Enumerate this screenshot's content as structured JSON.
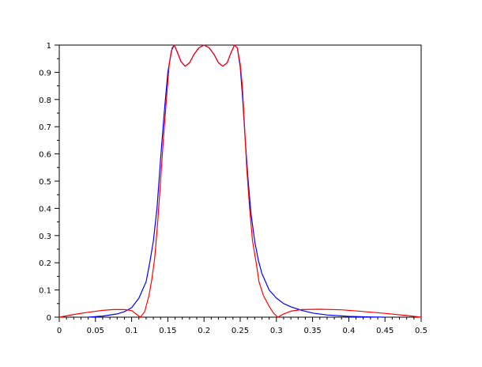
{
  "chart_data": {
    "type": "line",
    "title": "",
    "xlabel": "",
    "ylabel": "",
    "xlim": [
      0,
      0.5
    ],
    "ylim": [
      0,
      1
    ],
    "grid": false,
    "x_ticks": [
      "0",
      "0.05",
      "0.1",
      "0.15",
      "0.2",
      "0.25",
      "0.3",
      "0.35",
      "0.4",
      "0.45",
      "0.5"
    ],
    "y_ticks": [
      "0",
      "0.1",
      "0.2",
      "0.3",
      "0.4",
      "0.5",
      "0.6",
      "0.7",
      "0.8",
      "0.9",
      "1"
    ],
    "series": [
      {
        "color": "#0000ff",
        "x": [
          0.04,
          0.06,
          0.08,
          0.09,
          0.1,
          0.11,
          0.115,
          0.12,
          0.125,
          0.13,
          0.135,
          0.14,
          0.145,
          0.15,
          0.155,
          0.159,
          0.163,
          0.168,
          0.174,
          0.18,
          0.186,
          0.193,
          0.2,
          0.207,
          0.214,
          0.22,
          0.226,
          0.232,
          0.237,
          0.242,
          0.246,
          0.25,
          0.253,
          0.257,
          0.261,
          0.265,
          0.27,
          0.275,
          0.28,
          0.285,
          0.29,
          0.3,
          0.31,
          0.32,
          0.335,
          0.35,
          0.37,
          0.4,
          0.43,
          0.45
        ],
        "y": [
          0,
          0.004,
          0.012,
          0.02,
          0.035,
          0.07,
          0.1,
          0.13,
          0.2,
          0.28,
          0.4,
          0.58,
          0.75,
          0.9,
          0.98,
          1.0,
          0.975,
          0.94,
          0.922,
          0.935,
          0.965,
          0.99,
          1.0,
          0.99,
          0.965,
          0.935,
          0.922,
          0.935,
          0.97,
          1.0,
          0.99,
          0.92,
          0.82,
          0.65,
          0.5,
          0.38,
          0.28,
          0.21,
          0.16,
          0.13,
          0.1,
          0.07,
          0.05,
          0.038,
          0.025,
          0.015,
          0.008,
          0.003,
          0.001,
          0
        ]
      },
      {
        "color": "#ff0000",
        "x": [
          0,
          0.02,
          0.04,
          0.06,
          0.075,
          0.09,
          0.1,
          0.106,
          0.112,
          0.118,
          0.124,
          0.128,
          0.132,
          0.136,
          0.14,
          0.144,
          0.148,
          0.152,
          0.156,
          0.159,
          0.163,
          0.168,
          0.174,
          0.18,
          0.186,
          0.193,
          0.2,
          0.207,
          0.214,
          0.22,
          0.226,
          0.232,
          0.237,
          0.242,
          0.246,
          0.25,
          0.253,
          0.256,
          0.259,
          0.263,
          0.267,
          0.272,
          0.276,
          0.282,
          0.29,
          0.296,
          0.302,
          0.31,
          0.32,
          0.335,
          0.36,
          0.39,
          0.42,
          0.45,
          0.48,
          0.5
        ],
        "y": [
          0,
          0.01,
          0.018,
          0.025,
          0.028,
          0.028,
          0.024,
          0.012,
          0,
          0.02,
          0.08,
          0.14,
          0.22,
          0.35,
          0.5,
          0.66,
          0.8,
          0.93,
          0.99,
          1.0,
          0.975,
          0.94,
          0.922,
          0.935,
          0.965,
          0.99,
          1.0,
          0.99,
          0.965,
          0.935,
          0.922,
          0.935,
          0.97,
          1.0,
          0.99,
          0.93,
          0.85,
          0.7,
          0.55,
          0.4,
          0.28,
          0.2,
          0.13,
          0.08,
          0.04,
          0.015,
          0,
          0.012,
          0.022,
          0.028,
          0.029,
          0.027,
          0.021,
          0.014,
          0.006,
          0
        ]
      }
    ]
  }
}
